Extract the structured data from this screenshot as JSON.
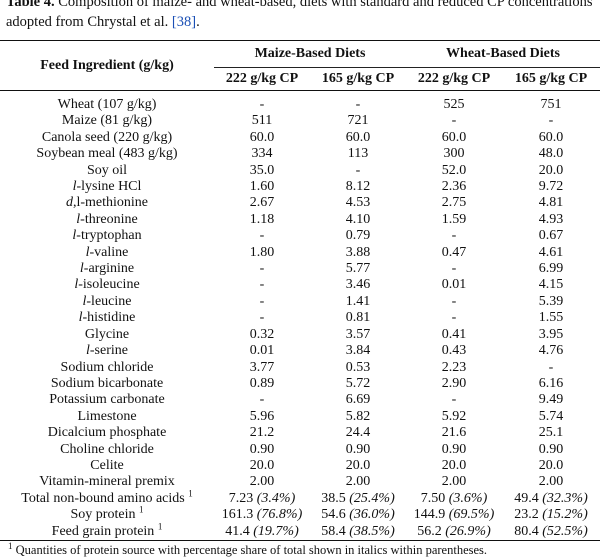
{
  "caption": {
    "label": "Table 4.",
    "text_before": " Composition of maize- and wheat-based, diets with standard and reduced CP concentrations adopted from Chrystal et al. ",
    "ref": "[38]",
    "text_after": "."
  },
  "header": {
    "ingredient": "Feed Ingredient (g/kg)",
    "groups": [
      "Maize-Based Diets",
      "Wheat-Based Diets"
    ],
    "subcols": [
      "222 g/kg CP",
      "165 g/kg CP",
      "222 g/kg CP",
      "165 g/kg CP"
    ]
  },
  "rows": [
    {
      "pre": "",
      "it": "",
      "post": "Wheat (107 g/kg)",
      "sup": "",
      "v": [
        "-",
        "-",
        "525",
        "751"
      ]
    },
    {
      "pre": "",
      "it": "",
      "post": "Maize (81 g/kg)",
      "sup": "",
      "v": [
        "511",
        "721",
        "-",
        "-"
      ]
    },
    {
      "pre": "",
      "it": "",
      "post": "Canola seed (220 g/kg)",
      "sup": "",
      "v": [
        "60.0",
        "60.0",
        "60.0",
        "60.0"
      ]
    },
    {
      "pre": "",
      "it": "",
      "post": "Soybean meal (483 g/kg)",
      "sup": "",
      "v": [
        "334",
        "113",
        "300",
        "48.0"
      ]
    },
    {
      "pre": "",
      "it": "",
      "post": "Soy oil",
      "sup": "",
      "v": [
        "35.0",
        "-",
        "52.0",
        "20.0"
      ]
    },
    {
      "pre": "",
      "it": "l",
      "post": "-lysine HCl",
      "sup": "",
      "v": [
        "1.60",
        "8.12",
        "2.36",
        "9.72"
      ]
    },
    {
      "pre": "",
      "it": "d",
      "post": ",l-methionine",
      "sup": "",
      "v": [
        "2.67",
        "4.53",
        "2.75",
        "4.81"
      ]
    },
    {
      "pre": "",
      "it": "l",
      "post": "-threonine",
      "sup": "",
      "v": [
        "1.18",
        "4.10",
        "1.59",
        "4.93"
      ]
    },
    {
      "pre": "",
      "it": "l",
      "post": "-tryptophan",
      "sup": "",
      "v": [
        "-",
        "0.79",
        "-",
        "0.67"
      ]
    },
    {
      "pre": "",
      "it": "l",
      "post": "-valine",
      "sup": "",
      "v": [
        "1.80",
        "3.88",
        "0.47",
        "4.61"
      ]
    },
    {
      "pre": "",
      "it": "l",
      "post": "-arginine",
      "sup": "",
      "v": [
        "-",
        "5.77",
        "-",
        "6.99"
      ]
    },
    {
      "pre": "",
      "it": "l",
      "post": "-isoleucine",
      "sup": "",
      "v": [
        "-",
        "3.46",
        "0.01",
        "4.15"
      ]
    },
    {
      "pre": "",
      "it": "l",
      "post": "-leucine",
      "sup": "",
      "v": [
        "-",
        "1.41",
        "-",
        "5.39"
      ]
    },
    {
      "pre": "",
      "it": "l",
      "post": "-histidine",
      "sup": "",
      "v": [
        "-",
        "0.81",
        "-",
        "1.55"
      ]
    },
    {
      "pre": "",
      "it": "",
      "post": "Glycine",
      "sup": "",
      "v": [
        "0.32",
        "3.57",
        "0.41",
        "3.95"
      ]
    },
    {
      "pre": "",
      "it": "l",
      "post": "-serine",
      "sup": "",
      "v": [
        "0.01",
        "3.84",
        "0.43",
        "4.76"
      ]
    },
    {
      "pre": "",
      "it": "",
      "post": "Sodium chloride",
      "sup": "",
      "v": [
        "3.77",
        "0.53",
        "2.23",
        "-"
      ]
    },
    {
      "pre": "",
      "it": "",
      "post": "Sodium bicarbonate",
      "sup": "",
      "v": [
        "0.89",
        "5.72",
        "2.90",
        "6.16"
      ]
    },
    {
      "pre": "",
      "it": "",
      "post": "Potassium carbonate",
      "sup": "",
      "v": [
        "-",
        "6.69",
        "-",
        "9.49"
      ]
    },
    {
      "pre": "",
      "it": "",
      "post": "Limestone",
      "sup": "",
      "v": [
        "5.96",
        "5.82",
        "5.92",
        "5.74"
      ]
    },
    {
      "pre": "",
      "it": "",
      "post": "Dicalcium phosphate",
      "sup": "",
      "v": [
        "21.2",
        "24.4",
        "21.6",
        "25.1"
      ]
    },
    {
      "pre": "",
      "it": "",
      "post": "Choline chloride",
      "sup": "",
      "v": [
        "0.90",
        "0.90",
        "0.90",
        "0.90"
      ]
    },
    {
      "pre": "",
      "it": "",
      "post": "Celite",
      "sup": "",
      "v": [
        "20.0",
        "20.0",
        "20.0",
        "20.0"
      ]
    },
    {
      "pre": "",
      "it": "",
      "post": "Vitamin-mineral premix",
      "sup": "",
      "v": [
        "2.00",
        "2.00",
        "2.00",
        "2.00"
      ]
    },
    {
      "pre": "",
      "it": "",
      "post": "Total non-bound amino acids",
      "sup": "1",
      "v": [
        "7.23",
        "38.5",
        "7.50",
        "49.4"
      ],
      "p": [
        "(3.4%)",
        "(25.4%)",
        "(3.6%)",
        "(32.3%)"
      ]
    },
    {
      "pre": "",
      "it": "",
      "post": "Soy protein",
      "sup": "1",
      "v": [
        "161.3",
        "54.6",
        "144.9",
        "23.2"
      ],
      "p": [
        "(76.8%)",
        "(36.0%)",
        "(69.5%)",
        "(15.2%)"
      ]
    },
    {
      "pre": "",
      "it": "",
      "post": "Feed grain protein",
      "sup": "1",
      "v": [
        "41.4",
        "58.4",
        "56.2",
        "80.4"
      ],
      "p": [
        "(19.7%)",
        "(38.5%)",
        "(26.9%)",
        "(52.5%)"
      ]
    }
  ],
  "footnote": {
    "sup": "1",
    "text": " Quantities of protein source with percentage share of total shown in italics within parentheses."
  }
}
